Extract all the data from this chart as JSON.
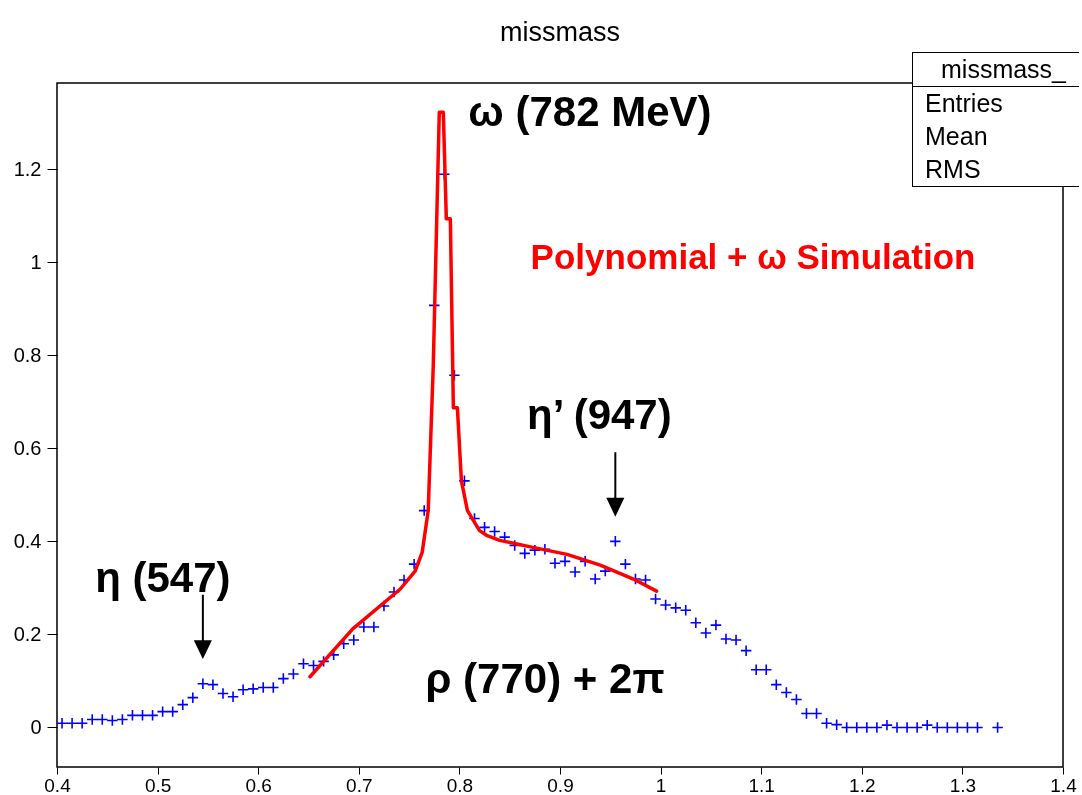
{
  "chart_data": {
    "type": "scatter",
    "title": "missmass",
    "xlim": [
      0.4,
      1.4
    ],
    "xticks": [
      0.4,
      0.5,
      0.6,
      0.7,
      0.8,
      0.9,
      1,
      1.1,
      1.2,
      1.3,
      1.4
    ],
    "ylim": [
      -0.085,
      1.385
    ],
    "yticks": [
      0,
      0.2,
      0.4,
      0.6,
      0.8,
      1,
      1.2
    ],
    "grid": false,
    "marker": "cross",
    "series": [
      {
        "color": "#0000ff",
        "x": [
          0.405,
          0.415,
          0.425,
          0.435,
          0.445,
          0.455,
          0.465,
          0.475,
          0.485,
          0.495,
          0.505,
          0.515,
          0.525,
          0.535,
          0.545,
          0.555,
          0.565,
          0.575,
          0.585,
          0.595,
          0.605,
          0.615,
          0.625,
          0.635,
          0.645,
          0.655,
          0.665,
          0.675,
          0.685,
          0.695,
          0.705,
          0.715,
          0.725,
          0.735,
          0.745,
          0.755,
          0.765,
          0.775,
          0.785,
          0.795,
          0.805,
          0.815,
          0.825,
          0.835,
          0.845,
          0.855,
          0.865,
          0.875,
          0.885,
          0.895,
          0.905,
          0.915,
          0.925,
          0.935,
          0.945,
          0.955,
          0.965,
          0.975,
          0.985,
          0.995,
          1.005,
          1.015,
          1.025,
          1.035,
          1.045,
          1.055,
          1.065,
          1.075,
          1.085,
          1.095,
          1.105,
          1.115,
          1.125,
          1.135,
          1.145,
          1.155,
          1.165,
          1.175,
          1.185,
          1.195,
          1.205,
          1.215,
          1.225,
          1.235,
          1.245,
          1.255,
          1.265,
          1.275,
          1.285,
          1.295,
          1.305,
          1.315,
          1.325,
          1.335
        ],
        "values": [
          0.009,
          0.009,
          0.009,
          0.017,
          0.017,
          0.015,
          0.017,
          0.026,
          0.026,
          0.026,
          0.034,
          0.034,
          0.049,
          0.064,
          0.094,
          0.092,
          0.073,
          0.066,
          0.081,
          0.083,
          0.086,
          0.086,
          0.105,
          0.115,
          0.137,
          0.133,
          0.142,
          0.156,
          0.18,
          0.188,
          0.216,
          0.216,
          0.261,
          0.291,
          0.317,
          0.351,
          0.466,
          0.907,
          1.189,
          0.757,
          0.53,
          0.449,
          0.43,
          0.421,
          0.409,
          0.391,
          0.374,
          0.381,
          0.383,
          0.353,
          0.357,
          0.334,
          0.357,
          0.319,
          0.336,
          0.4,
          0.351,
          0.319,
          0.317,
          0.276,
          0.263,
          0.257,
          0.252,
          0.225,
          0.203,
          0.22,
          0.19,
          0.188,
          0.165,
          0.124,
          0.124,
          0.092,
          0.075,
          0.06,
          0.03,
          0.03,
          0.009,
          0.006,
          0,
          0,
          0,
          0,
          0.005,
          0,
          0,
          0,
          0.005,
          0,
          0,
          0,
          0,
          0,
          null,
          0
        ]
      },
      {
        "type": "line",
        "name": "Polynomial + ω Simulation",
        "color": "#ff0000",
        "line_style": "solid",
        "marker": "none",
        "x": [
          0.6515,
          0.694,
          0.741,
          0.756,
          0.763,
          0.769,
          0.774,
          0.78,
          0.784,
          0.787,
          0.791,
          0.794,
          0.798,
          0.802,
          0.808,
          0.82,
          0.827,
          0.84,
          0.873,
          0.907,
          0.94,
          0.973,
          0.996
        ],
        "values": [
          0.109,
          0.212,
          0.297,
          0.336,
          0.376,
          0.466,
          0.776,
          1.322,
          1.322,
          1.093,
          1.093,
          0.687,
          0.687,
          0.53,
          0.466,
          0.423,
          0.413,
          0.402,
          0.387,
          0.372,
          0.349,
          0.319,
          0.293
        ]
      }
    ],
    "annotations": [
      {
        "text": "η (547)",
        "x": 0.545,
        "y": 0.094
      },
      {
        "text": "η’ (947)",
        "x": 0.955,
        "y": 0.4
      },
      {
        "text": "ω (782 MeV)",
        "x": 0.785,
        "y": 1.322
      },
      "ρ (770) + 2π",
      "missmass_",
      "Entries",
      "Mean",
      "RMS"
    ]
  }
}
